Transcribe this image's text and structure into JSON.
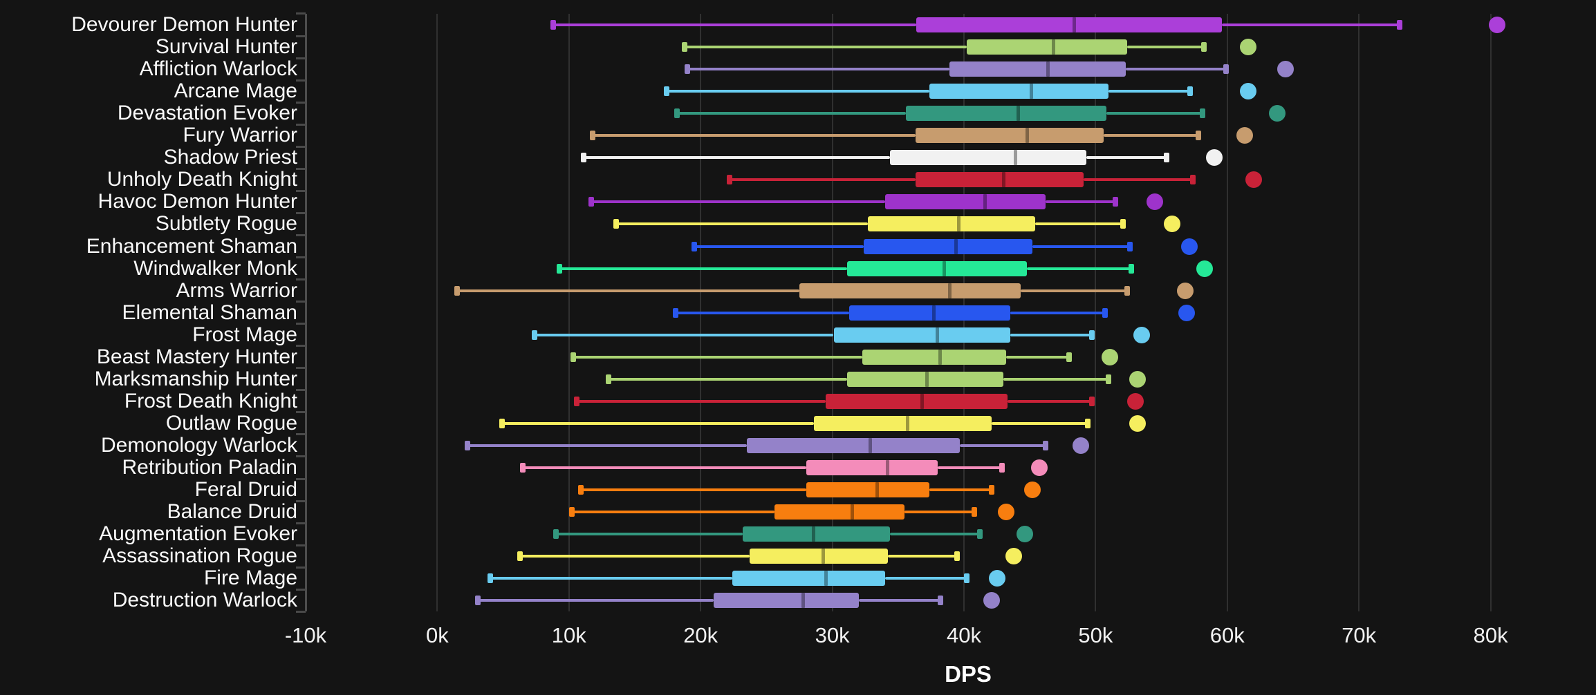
{
  "chart_data": {
    "type": "boxplot",
    "orientation": "horizontal",
    "title": "",
    "xlabel": "DPS",
    "ylabel": "",
    "grid": true,
    "background_color": "#141414",
    "gridline_color": "#303030",
    "axis_line_color": "#4d4d4d",
    "text_color": "#fafafa",
    "x_ticks": [
      "-10k",
      "0k",
      "10k",
      "20k",
      "30k",
      "40k",
      "50k",
      "60k",
      "70k",
      "80k"
    ],
    "x_tick_values": [
      -10000,
      0,
      10000,
      20000,
      30000,
      40000,
      50000,
      60000,
      70000,
      80000
    ],
    "x_range": [
      -10000,
      88000
    ],
    "series": [
      {
        "label": "Devourer Demon Hunter",
        "color": "#ab3fd9",
        "whisker_low": 8800,
        "q1": 36400,
        "median": 48400,
        "q3": 59600,
        "whisker_high": 73100,
        "point": 80500
      },
      {
        "label": "Survival Hunter",
        "color": "#abd473",
        "whisker_low": 18800,
        "q1": 40200,
        "median": 46800,
        "q3": 52400,
        "whisker_high": 58200,
        "point": 61600
      },
      {
        "label": "Affliction Warlock",
        "color": "#9482c9",
        "whisker_low": 19000,
        "q1": 38900,
        "median": 46400,
        "q3": 52300,
        "whisker_high": 59900,
        "point": 64400
      },
      {
        "label": "Arcane Mage",
        "color": "#69ccf0",
        "whisker_low": 17400,
        "q1": 37400,
        "median": 45100,
        "q3": 51000,
        "whisker_high": 57200,
        "point": 61600
      },
      {
        "label": "Devastation Evoker",
        "color": "#33987f",
        "whisker_low": 18200,
        "q1": 35600,
        "median": 44100,
        "q3": 50800,
        "whisker_high": 58100,
        "point": 63800
      },
      {
        "label": "Fury Warrior",
        "color": "#c79c6e",
        "whisker_low": 11800,
        "q1": 36300,
        "median": 44800,
        "q3": 50600,
        "whisker_high": 57800,
        "point": 61300
      },
      {
        "label": "Shadow Priest",
        "color": "#f1f1f1",
        "whisker_low": 11100,
        "q1": 34400,
        "median": 43900,
        "q3": 49300,
        "whisker_high": 55400,
        "point": 59000
      },
      {
        "label": "Unholy Death Knight",
        "color": "#c92238",
        "whisker_low": 22200,
        "q1": 36300,
        "median": 43000,
        "q3": 49100,
        "whisker_high": 57400,
        "point": 62000
      },
      {
        "label": "Havoc Demon Hunter",
        "color": "#9e33cb",
        "whisker_low": 11700,
        "q1": 34000,
        "median": 41600,
        "q3": 46200,
        "whisker_high": 51500,
        "point": 54500
      },
      {
        "label": "Subtlety Rogue",
        "color": "#f5ee5f",
        "whisker_low": 13600,
        "q1": 32700,
        "median": 39600,
        "q3": 45400,
        "whisker_high": 52100,
        "point": 55800
      },
      {
        "label": "Enhancement Shaman",
        "color": "#2857ef",
        "whisker_low": 19500,
        "q1": 32400,
        "median": 39400,
        "q3": 45200,
        "whisker_high": 52600,
        "point": 57100
      },
      {
        "label": "Windwalker Monk",
        "color": "#25e897",
        "whisker_low": 9300,
        "q1": 31100,
        "median": 38500,
        "q3": 44800,
        "whisker_high": 52700,
        "point": 58300
      },
      {
        "label": "Arms Warrior",
        "color": "#c79c6e",
        "whisker_low": 1500,
        "q1": 27500,
        "median": 38900,
        "q3": 44300,
        "whisker_high": 52400,
        "point": 56800
      },
      {
        "label": "Elemental Shaman",
        "color": "#2857ef",
        "whisker_low": 18100,
        "q1": 31300,
        "median": 37700,
        "q3": 43500,
        "whisker_high": 50700,
        "point": 56900
      },
      {
        "label": "Frost Mage",
        "color": "#69ccf0",
        "whisker_low": 7400,
        "q1": 30100,
        "median": 38000,
        "q3": 43500,
        "whisker_high": 49700,
        "point": 53500
      },
      {
        "label": "Beast Mastery Hunter",
        "color": "#abd473",
        "whisker_low": 10300,
        "q1": 32300,
        "median": 38200,
        "q3": 43200,
        "whisker_high": 48000,
        "point": 51100
      },
      {
        "label": "Marksmanship Hunter",
        "color": "#abd473",
        "whisker_low": 13000,
        "q1": 31100,
        "median": 37200,
        "q3": 43000,
        "whisker_high": 51000,
        "point": 53200
      },
      {
        "label": "Frost Death Knight",
        "color": "#c92238",
        "whisker_low": 10600,
        "q1": 29500,
        "median": 36800,
        "q3": 43300,
        "whisker_high": 49700,
        "point": 53000
      },
      {
        "label": "Outlaw Rogue",
        "color": "#f5ee5f",
        "whisker_low": 4900,
        "q1": 28600,
        "median": 35700,
        "q3": 42100,
        "whisker_high": 49400,
        "point": 53200
      },
      {
        "label": "Demonology Warlock",
        "color": "#9482c9",
        "whisker_low": 2300,
        "q1": 23500,
        "median": 32900,
        "q3": 39700,
        "whisker_high": 46200,
        "point": 48900
      },
      {
        "label": "Retribution Paladin",
        "color": "#f48cba",
        "whisker_low": 6500,
        "q1": 28000,
        "median": 34200,
        "q3": 38000,
        "whisker_high": 42900,
        "point": 45700
      },
      {
        "label": "Feral Druid",
        "color": "#f87e0f",
        "whisker_low": 10900,
        "q1": 28000,
        "median": 33400,
        "q3": 37400,
        "whisker_high": 42100,
        "point": 45200
      },
      {
        "label": "Balance Druid",
        "color": "#f87e0f",
        "whisker_low": 10200,
        "q1": 25600,
        "median": 31500,
        "q3": 35500,
        "whisker_high": 40800,
        "point": 43200
      },
      {
        "label": "Augmentation Evoker",
        "color": "#33987f",
        "whisker_low": 9000,
        "q1": 23200,
        "median": 28600,
        "q3": 34400,
        "whisker_high": 41200,
        "point": 44600
      },
      {
        "label": "Assassination Rogue",
        "color": "#f5ee5f",
        "whisker_low": 6300,
        "q1": 23700,
        "median": 29300,
        "q3": 34200,
        "whisker_high": 39500,
        "point": 43800
      },
      {
        "label": "Fire Mage",
        "color": "#69ccf0",
        "whisker_low": 4000,
        "q1": 22400,
        "median": 29500,
        "q3": 34000,
        "whisker_high": 40200,
        "point": 42500
      },
      {
        "label": "Destruction Warlock",
        "color": "#9482c9",
        "whisker_low": 3100,
        "q1": 21000,
        "median": 27800,
        "q3": 32000,
        "whisker_high": 38200,
        "point": 42100
      }
    ]
  }
}
